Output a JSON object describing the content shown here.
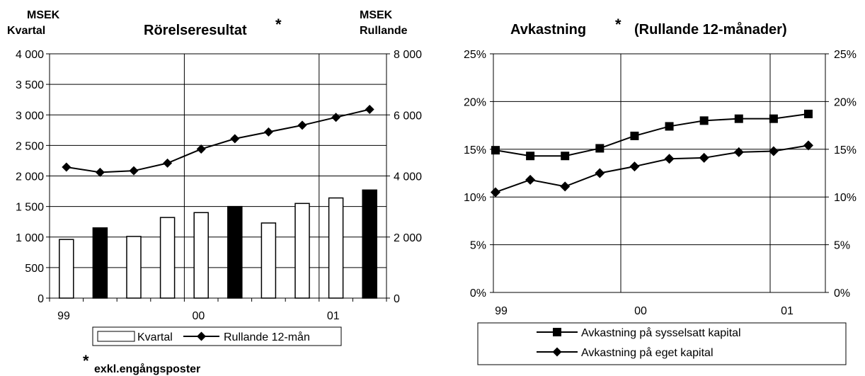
{
  "chart_data": [
    {
      "type": "bar",
      "title": "Rörelseresultat",
      "title_marker": "*",
      "ylabel_left": [
        "MSEK",
        "Kvartal"
      ],
      "ylabel_right": [
        "MSEK",
        "Rullande"
      ],
      "x_tick_labels": [
        "99",
        "00",
        "01"
      ],
      "left_y_ticks": [
        "4 000",
        "3 500",
        "3 000",
        "2 500",
        "2 000",
        "1 500",
        "1 000",
        "500",
        "0"
      ],
      "right_y_ticks": [
        "8 000",
        "6 000",
        "4 000",
        "2 000",
        "0"
      ],
      "ylim_left": [
        0,
        4000
      ],
      "ylim_right": [
        0,
        8000
      ],
      "grid": true,
      "legend_position": "bottom",
      "footnote_marker": "*",
      "footnote": "exkl.engångsposter",
      "series": [
        {
          "name": "Kvartal",
          "axis": "left",
          "values": [
            960,
            1150,
            1010,
            1320,
            1400,
            1500,
            1230,
            1550,
            1640,
            1770
          ],
          "highlight": [
            false,
            true,
            false,
            false,
            false,
            true,
            false,
            false,
            false,
            true
          ]
        },
        {
          "name": "Rullande 12-mån",
          "axis": "right",
          "values": [
            4290,
            4120,
            4170,
            4420,
            4880,
            5220,
            5440,
            5660,
            5920,
            6180
          ]
        }
      ]
    },
    {
      "type": "line",
      "title": "Avkastning",
      "title_marker": "*",
      "title_suffix": "(Rullande 12-månader)",
      "x_tick_labels": [
        "99",
        "00",
        "01"
      ],
      "y_ticks": [
        "25%",
        "20%",
        "15%",
        "10%",
        "5%",
        "0%"
      ],
      "ylim": [
        0,
        25
      ],
      "grid": true,
      "legend_position": "bottom",
      "series": [
        {
          "name": "Avkastning på sysselsatt kapital",
          "marker": "square",
          "values": [
            14.9,
            14.3,
            14.3,
            15.1,
            16.4,
            17.4,
            18.0,
            18.2,
            18.2,
            18.7
          ]
        },
        {
          "name": "Avkastning på eget kapital",
          "marker": "diamond",
          "values": [
            10.5,
            11.8,
            11.1,
            12.5,
            13.2,
            14.0,
            14.1,
            14.7,
            14.8,
            15.4
          ]
        }
      ]
    }
  ]
}
